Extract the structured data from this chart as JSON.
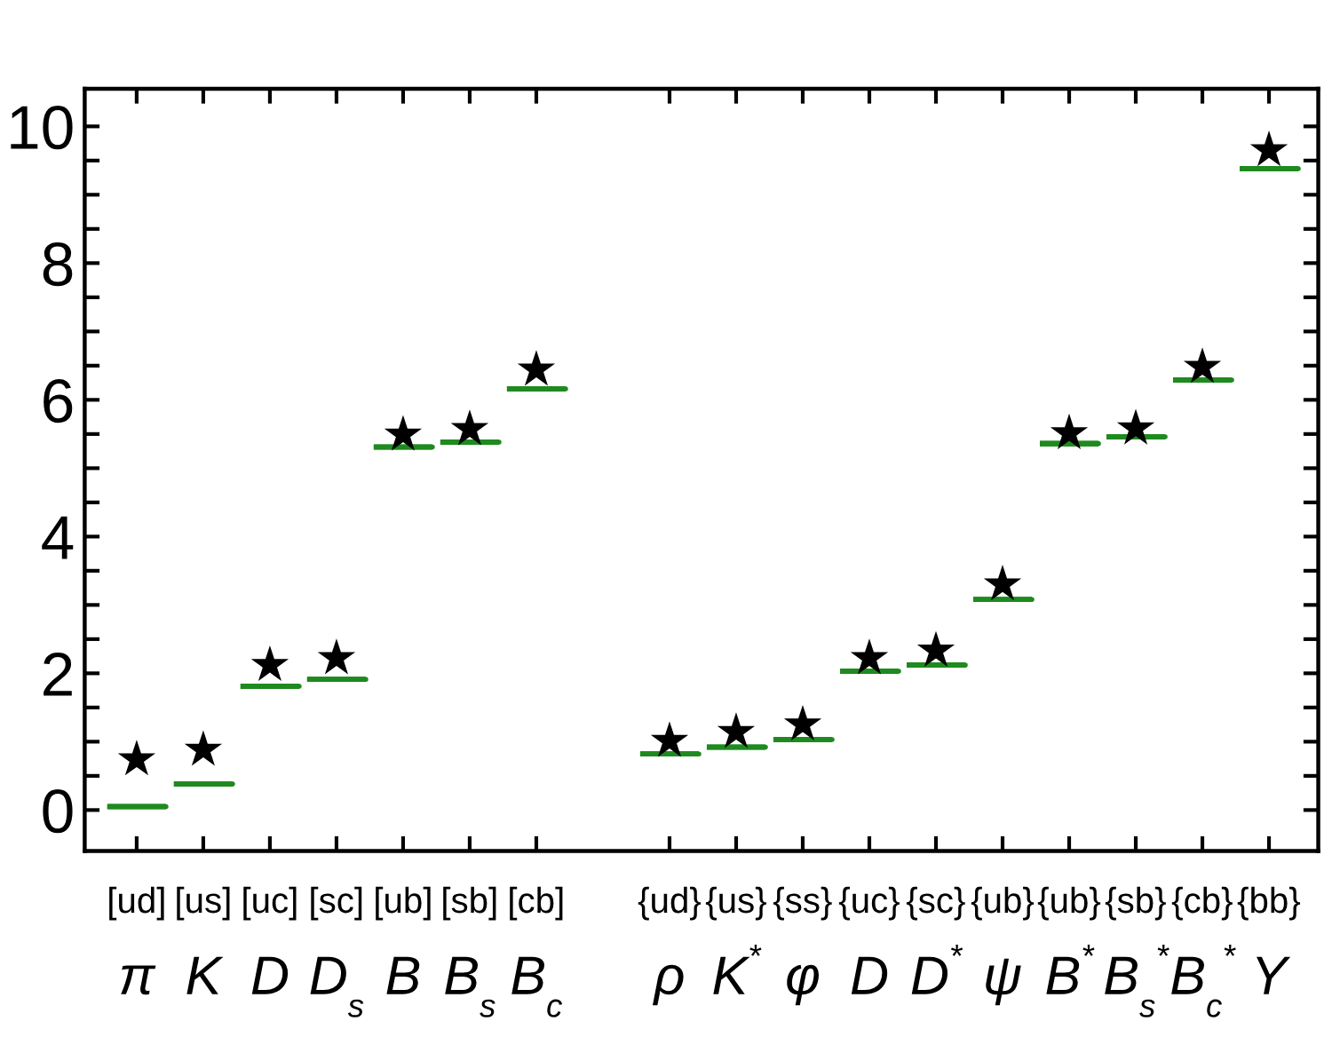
{
  "chart_data": {
    "type": "scatter",
    "categories": [
      "[ud]\nπ",
      "[us]\nK",
      "[uc]\nD",
      "[sc]\nD$_{s}$",
      "[ub]\nB",
      "[sb]\nB$_{s}$",
      "[cb]\nB$_{c}$",
      null,
      "{ud}\nρ",
      "{us}\nK$^{*}$",
      "{ss}\nφ",
      "{uc}\nD",
      "{sc}\nD$^{*}$",
      "{ub}\nψ",
      "{ub}\nB$^{*}$",
      "{sb}\nB$_{s}$$^{*}$",
      "{cb}\nB$_{c}$$^{*}$",
      "{bb}\nΥ"
    ],
    "series": [
      {
        "type": "box",
        "color": "#1f8a1f",
        "boxes": [
          {
            "low": 0.05,
            "q1": 0.05,
            "median": 0.05,
            "q3": 0.05,
            "high": 0.05
          },
          {
            "low": 0.38,
            "q1": 0.38,
            "median": 0.38,
            "q3": 0.38,
            "high": 0.38
          },
          {
            "low": 1.81,
            "q1": 1.81,
            "median": 1.81,
            "q3": 1.81,
            "high": 1.81
          },
          {
            "low": 1.91,
            "q1": 1.91,
            "median": 1.91,
            "q3": 1.91,
            "high": 1.91
          },
          {
            "low": 5.31,
            "q1": 5.31,
            "median": 5.31,
            "q3": 5.31,
            "high": 5.31
          },
          {
            "low": 5.38,
            "q1": 5.38,
            "median": 5.38,
            "q3": 5.38,
            "high": 5.38
          },
          {
            "low": 6.16,
            "q1": 6.16,
            "median": 6.16,
            "q3": 6.16,
            "high": 6.16
          },
          null,
          {
            "low": 0.82,
            "q1": 0.82,
            "median": 0.82,
            "q3": 0.82,
            "high": 0.82
          },
          {
            "low": 0.92,
            "q1": 0.92,
            "median": 0.92,
            "q3": 0.92,
            "high": 0.92
          },
          {
            "low": 1.03,
            "q1": 1.03,
            "median": 1.03,
            "q3": 1.03,
            "high": 1.03
          },
          {
            "low": 2.03,
            "q1": 2.03,
            "median": 2.03,
            "q3": 2.03,
            "high": 2.03
          },
          {
            "low": 2.12,
            "q1": 2.12,
            "median": 2.12,
            "q3": 2.12,
            "high": 2.12
          },
          {
            "low": 3.08,
            "q1": 3.08,
            "median": 3.08,
            "q3": 3.08,
            "high": 3.08
          },
          {
            "low": 5.36,
            "q1": 5.36,
            "median": 5.36,
            "q3": 5.36,
            "high": 5.36
          },
          {
            "low": 5.46,
            "q1": 5.46,
            "median": 5.46,
            "q3": 5.46,
            "high": 5.46
          },
          {
            "low": 6.29,
            "q1": 6.29,
            "median": 6.29,
            "q3": 6.29,
            "high": 6.29
          },
          {
            "low": 9.38,
            "q1": 9.38,
            "median": 9.38,
            "q3": 9.38,
            "high": 9.38
          }
        ]
      },
      {
        "marker": "star",
        "color": "#000000",
        "values": [
          0.74,
          0.88,
          2.12,
          2.22,
          5.49,
          5.57,
          6.44,
          null,
          1.01,
          1.14,
          1.25,
          2.22,
          2.33,
          3.3,
          5.51,
          5.58,
          6.48,
          9.65
        ]
      }
    ],
    "ylim": [
      -0.6,
      10.55
    ],
    "yticks": [
      0,
      {
        "value": 0.5,
        "label": null
      },
      {
        "value": 1,
        "label": null
      },
      {
        "value": 1.5,
        "label": null
      },
      2,
      {
        "value": 2.5,
        "label": null
      },
      {
        "value": 3,
        "label": null
      },
      {
        "value": 3.5,
        "label": null
      },
      4,
      {
        "value": 4.5,
        "label": null
      },
      {
        "value": 5,
        "label": null
      },
      {
        "value": 5.5,
        "label": null
      },
      6,
      {
        "value": 6.5,
        "label": null
      },
      {
        "value": 7,
        "label": null
      },
      {
        "value": 7.5,
        "label": null
      },
      8,
      {
        "value": 8.5,
        "label": null
      },
      {
        "value": 9,
        "label": null
      },
      {
        "value": 9.5,
        "label": null
      },
      10
    ]
  }
}
